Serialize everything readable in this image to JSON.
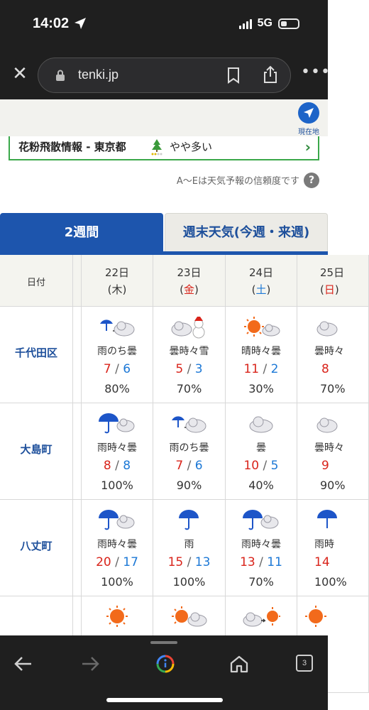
{
  "status": {
    "time": "14:02",
    "network": "5G"
  },
  "browser": {
    "url": "tenki.jp"
  },
  "location_button": {
    "label": "現在地"
  },
  "pollen": {
    "title": "花粉飛散情報 - 東京都",
    "level": "やや多い"
  },
  "reliability_note": "A〜Eは天気予報の信頼度です",
  "help_label": "?",
  "tabs": {
    "two_weeks": "2週間",
    "weekend": "週末天気(今週・来週)"
  },
  "table": {
    "date_header": "日付",
    "dates": [
      {
        "day": "22日",
        "dow_open": "(",
        "dow": "木",
        "dow_close": ")",
        "dow_color": "normal"
      },
      {
        "day": "23日",
        "dow_open": "(",
        "dow": "金",
        "dow_close": ")",
        "dow_color": "red"
      },
      {
        "day": "24日",
        "dow_open": "(",
        "dow": "土",
        "dow_close": ")",
        "dow_color": "blue"
      },
      {
        "day": "25日",
        "dow_open": "(",
        "dow": "日",
        "dow_close": ")",
        "dow_color": "red"
      }
    ],
    "rows": [
      {
        "location": "千代田区",
        "days": [
          {
            "icon": "rain-then-cloudy-icon",
            "telop": "雨のち曇",
            "high": "7",
            "low": "6",
            "prob": "80%"
          },
          {
            "icon": "cloudy-with-snow-icon",
            "telop": "曇時々雪",
            "high": "5",
            "low": "3",
            "prob": "70%"
          },
          {
            "icon": "sunny-with-clouds-icon",
            "telop": "晴時々曇",
            "high": "11",
            "low": "2",
            "prob": "30%"
          },
          {
            "icon": "cloudy-icon",
            "telop": "曇時々",
            "high": "8",
            "low": "",
            "prob": "70%"
          }
        ]
      },
      {
        "location": "大島町",
        "days": [
          {
            "icon": "rain-with-clouds-icon",
            "telop": "雨時々曇",
            "high": "8",
            "low": "8",
            "prob": "100%"
          },
          {
            "icon": "rain-then-cloudy-icon",
            "telop": "雨のち曇",
            "high": "7",
            "low": "6",
            "prob": "90%"
          },
          {
            "icon": "cloudy-icon",
            "telop": "曇",
            "high": "10",
            "low": "5",
            "prob": "40%"
          },
          {
            "icon": "cloudy-icon",
            "telop": "曇時々",
            "high": "9",
            "low": "",
            "prob": "90%"
          }
        ]
      },
      {
        "location": "八丈町",
        "days": [
          {
            "icon": "rain-with-clouds-icon",
            "telop": "雨時々曇",
            "high": "20",
            "low": "17",
            "prob": "100%"
          },
          {
            "icon": "rain-icon",
            "telop": "雨",
            "high": "15",
            "low": "13",
            "prob": "100%"
          },
          {
            "icon": "rain-with-clouds-icon",
            "telop": "雨時々曇",
            "high": "13",
            "low": "11",
            "prob": "70%"
          },
          {
            "icon": "rain-icon",
            "telop": "雨時",
            "high": "14",
            "low": "",
            "prob": "100%"
          }
        ]
      },
      {
        "location": "",
        "days": [
          {
            "icon": "sunny-icon"
          },
          {
            "icon": "sunny-with-clouds-icon"
          },
          {
            "icon": "cloudy-then-sunny-icon"
          },
          {
            "icon": "sunny-icon"
          }
        ]
      }
    ]
  },
  "bottom_nav": {
    "tab_count": "3"
  },
  "colors": {
    "brand_blue": "#1d55ad",
    "high_temp": "#d9241b",
    "low_temp": "#1c78d6",
    "pollen_green": "#3aa84a"
  }
}
